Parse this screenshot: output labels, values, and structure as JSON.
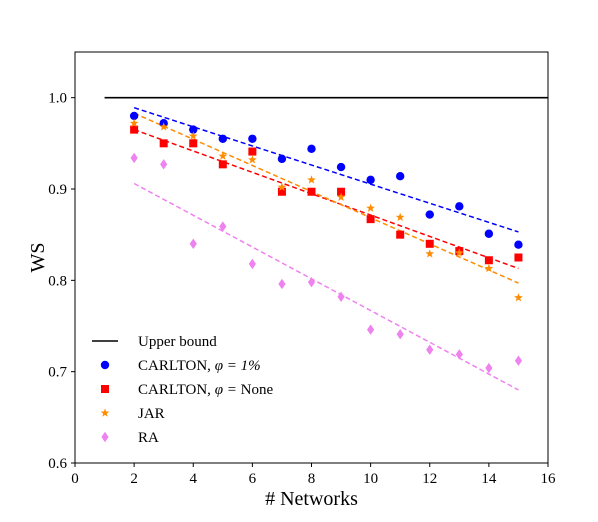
{
  "chart_data": {
    "type": "scatter",
    "xlabel": "# Networks",
    "ylabel": "WS",
    "xlim": [
      0,
      16
    ],
    "ylim": [
      0.6,
      1.05
    ],
    "xticks": [
      0,
      2,
      4,
      6,
      8,
      10,
      12,
      14,
      16
    ],
    "yticks": [
      0.6,
      0.7,
      0.8,
      0.9,
      1.0
    ],
    "xtick_labels": [
      "0",
      "2",
      "4",
      "6",
      "8",
      "10",
      "12",
      "14",
      "16"
    ],
    "ytick_labels": [
      "0.6",
      "0.7",
      "0.8",
      "0.9",
      "1.0"
    ],
    "legend_position": "lower-left",
    "grid": false,
    "upper_bound": {
      "name": "Upper bound",
      "color": "#000000",
      "y": 1.0,
      "x_range": [
        1,
        16
      ]
    },
    "series": [
      {
        "name_prefix": "CARLTON, ",
        "name_math": "φ = 1%",
        "color": "#0000ff",
        "marker": "circle",
        "x": [
          2,
          3,
          4,
          5,
          6,
          7,
          8,
          9,
          10,
          11,
          12,
          13,
          14,
          15
        ],
        "y": [
          0.98,
          0.972,
          0.965,
          0.955,
          0.955,
          0.933,
          0.944,
          0.924,
          0.91,
          0.914,
          0.872,
          0.881,
          0.851,
          0.839
        ],
        "fit": {
          "x": [
            2,
            15
          ],
          "y": [
            0.989,
            0.853
          ]
        }
      },
      {
        "name_prefix": "CARLTON, ",
        "name_math": "φ = ",
        "name_suffix": "None",
        "color": "#ff0000",
        "marker": "square",
        "x": [
          2,
          3,
          4,
          5,
          6,
          7,
          8,
          9,
          10,
          11,
          12,
          13,
          14,
          15
        ],
        "y": [
          0.965,
          0.95,
          0.95,
          0.927,
          0.941,
          0.897,
          0.897,
          0.897,
          0.867,
          0.85,
          0.84,
          0.832,
          0.822,
          0.825
        ],
        "fit": {
          "x": [
            2,
            15
          ],
          "y": [
            0.965,
            0.813
          ]
        }
      },
      {
        "name_prefix": "JAR",
        "color": "#ff8c00",
        "marker": "star",
        "x": [
          2,
          3,
          4,
          5,
          6,
          7,
          8,
          9,
          10,
          11,
          12,
          13,
          14,
          15
        ],
        "y": [
          0.972,
          0.968,
          0.958,
          0.936,
          0.932,
          0.902,
          0.91,
          0.891,
          0.879,
          0.869,
          0.829,
          0.83,
          0.813,
          0.781
        ],
        "fit": {
          "x": [
            2,
            15
          ],
          "y": [
            0.983,
            0.797
          ]
        }
      },
      {
        "name_prefix": "RA",
        "color": "#ee82ee",
        "marker": "diamond",
        "x": [
          2,
          3,
          4,
          5,
          6,
          7,
          8,
          9,
          10,
          11,
          12,
          13,
          14,
          15
        ],
        "y": [
          0.934,
          0.927,
          0.84,
          0.859,
          0.818,
          0.796,
          0.798,
          0.782,
          0.746,
          0.741,
          0.724,
          0.719,
          0.704,
          0.712
        ],
        "fit": {
          "x": [
            2,
            15
          ],
          "y": [
            0.906,
            0.68
          ]
        }
      }
    ]
  }
}
